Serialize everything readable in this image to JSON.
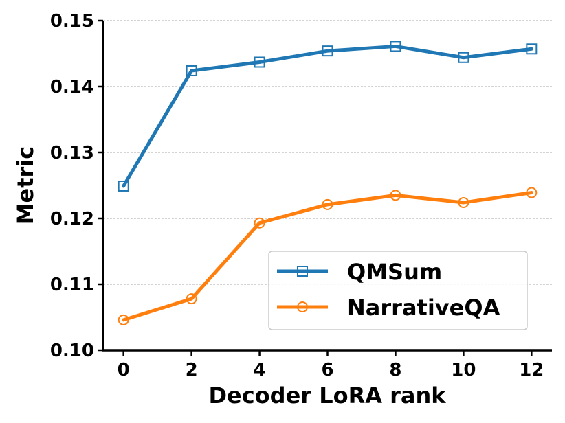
{
  "chart_data": {
    "type": "line",
    "xlabel": "Decoder LoRA rank",
    "ylabel": "Metric",
    "x": [
      0,
      2,
      4,
      6,
      8,
      10,
      12
    ],
    "xticks": [
      "0",
      "2",
      "4",
      "6",
      "8",
      "10",
      "12"
    ],
    "yticks": [
      "0.10",
      "0.11",
      "0.12",
      "0.13",
      "0.14",
      "0.15"
    ],
    "xlim": [
      -0.6,
      12.6
    ],
    "ylim": [
      0.1,
      0.15
    ],
    "grid": "horizontal-dashed",
    "legend_position": "lower-right",
    "series": [
      {
        "name": "QMSum",
        "color": "#1f77b4",
        "marker": "square",
        "values": [
          0.1249,
          0.1424,
          0.1437,
          0.1454,
          0.1461,
          0.1444,
          0.1457
        ]
      },
      {
        "name": "NarrativeQA",
        "color": "#ff7f0e",
        "marker": "circle",
        "values": [
          0.1046,
          0.1078,
          0.1193,
          0.1221,
          0.1235,
          0.1224,
          0.1239
        ]
      }
    ]
  }
}
